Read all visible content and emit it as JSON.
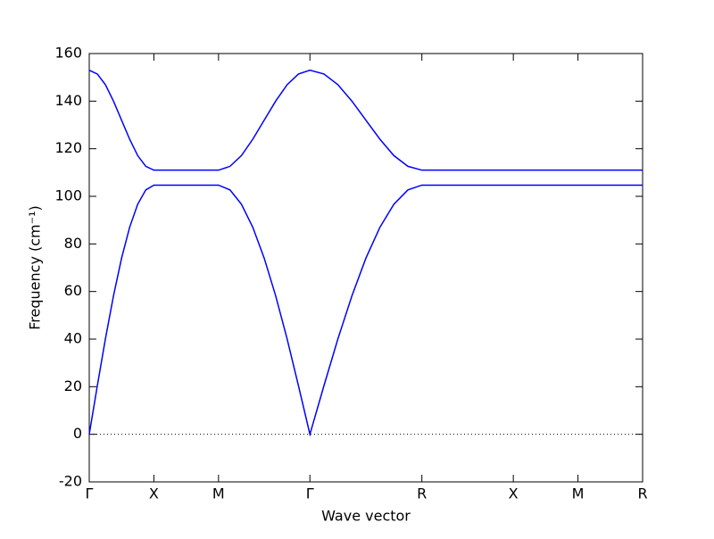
{
  "chart_data": {
    "type": "line",
    "xlabel": "Wave vector",
    "ylabel": "Frequency (cm⁻¹)",
    "x": [
      0,
      0.125,
      0.25,
      0.375,
      0.5,
      0.625,
      0.75,
      0.875,
      1,
      2,
      2.177,
      2.354,
      2.53,
      2.707,
      2.884,
      3.061,
      3.237,
      3.414,
      3.631,
      3.847,
      4.064,
      4.28,
      4.497,
      4.713,
      4.93,
      5.146,
      6.561,
      7.561,
      8.561
    ],
    "series": [
      {
        "color": "#0000ff",
        "values": [
          0,
          20.4,
          40.1,
          58.2,
          74.0,
          87.0,
          96.7,
          102.7,
          104.7,
          104.7,
          102.7,
          96.7,
          87.0,
          74.0,
          58.2,
          40.1,
          20.4,
          0,
          20.4,
          40.1,
          58.2,
          74.0,
          87.0,
          96.7,
          102.7,
          104.7,
          104.7,
          104.7,
          104.7
        ]
      },
      {
        "color": "#0000ff",
        "values": [
          153,
          151.4,
          146.9,
          140.0,
          132.0,
          124.0,
          117.1,
          112.6,
          111,
          111,
          112.6,
          117.1,
          124.0,
          132.0,
          140.0,
          146.9,
          151.4,
          153,
          151.4,
          146.9,
          140.0,
          132.0,
          124.0,
          117.1,
          112.6,
          111,
          111,
          111,
          111
        ]
      }
    ],
    "xlim": [
      0,
      8.561
    ],
    "xticks": [
      {
        "value": 0,
        "label": "Γ"
      },
      {
        "value": 1,
        "label": "X"
      },
      {
        "value": 2,
        "label": "M"
      },
      {
        "value": 3.414,
        "label": "Γ"
      },
      {
        "value": 5.146,
        "label": "R"
      },
      {
        "value": 6.561,
        "label": "X"
      },
      {
        "value": 7.561,
        "label": "M"
      },
      {
        "value": 8.561,
        "label": "R"
      }
    ],
    "ylim": [
      -20,
      160
    ],
    "yticks": [
      -20,
      0,
      20,
      40,
      60,
      80,
      100,
      120,
      140,
      160
    ],
    "hline": 0
  }
}
